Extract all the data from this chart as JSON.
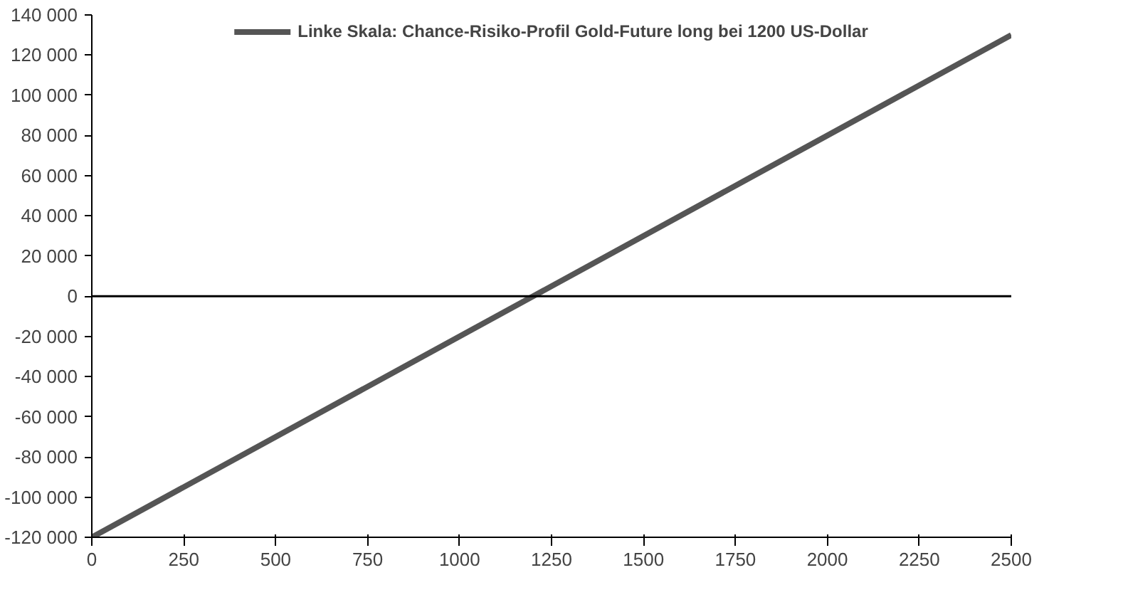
{
  "chart_data": {
    "type": "line",
    "x": [
      0,
      1200,
      2500
    ],
    "series": [
      {
        "name": "Linke Skala: Chance-Risiko-Profil Gold-Future long bei 1200 US-Dollar",
        "color": "#555555",
        "values": [
          -120000,
          0,
          130000
        ]
      }
    ],
    "xlim": [
      0,
      2500
    ],
    "xticks": [
      0,
      250,
      500,
      750,
      1000,
      1250,
      1500,
      1750,
      2000,
      2250,
      2500
    ],
    "ylim": [
      -120000,
      140000
    ],
    "yticks": [
      {
        "value": -120000,
        "label": "-120 000"
      },
      {
        "value": -100000,
        "label": "-100 000"
      },
      {
        "value": -80000,
        "label": "-80 000"
      },
      {
        "value": -60000,
        "label": "-60 000"
      },
      {
        "value": -40000,
        "label": "-40 000"
      },
      {
        "value": -20000,
        "label": "-20 000"
      },
      0,
      {
        "value": 20000,
        "label": "20 000"
      },
      {
        "value": 40000,
        "label": "40 000"
      },
      {
        "value": 60000,
        "label": "60 000"
      },
      {
        "value": 80000,
        "label": "80 000"
      },
      {
        "value": 100000,
        "label": "100 000"
      },
      {
        "value": 120000,
        "label": "120 000"
      },
      {
        "value": 140000,
        "label": "140 000"
      }
    ],
    "ref_lines": [
      {
        "axis": "y",
        "value": 0,
        "color": "#000000"
      }
    ],
    "grid": false,
    "legend": "top",
    "marker": "none",
    "line_style": "solid"
  }
}
